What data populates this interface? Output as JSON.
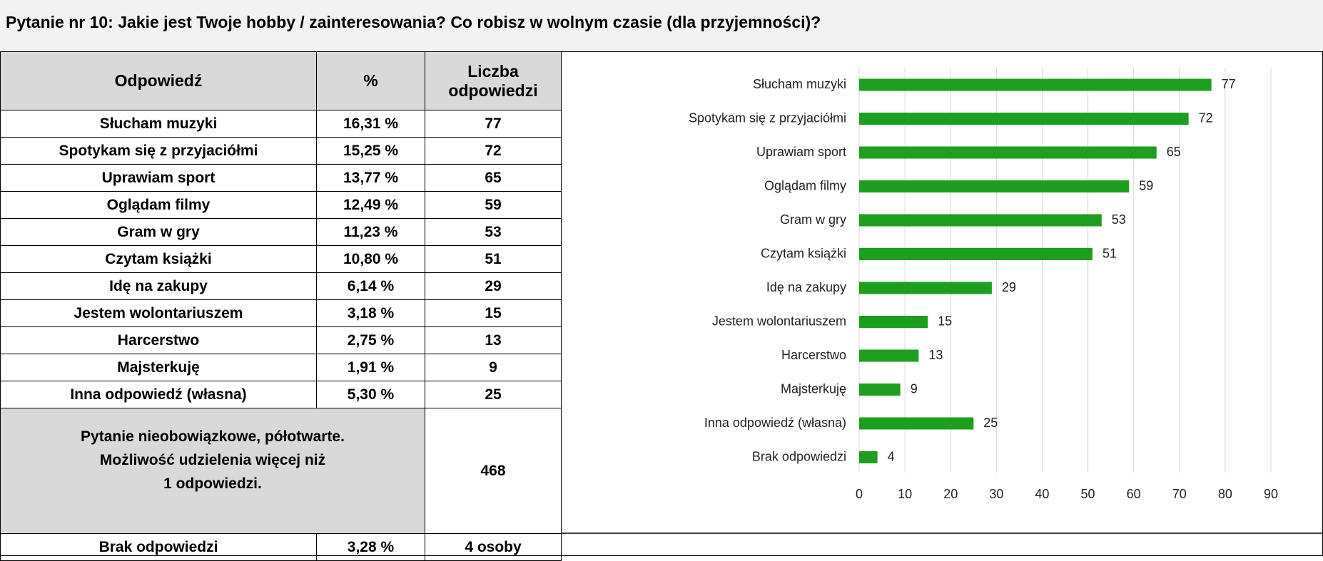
{
  "title": "Pytanie nr 10: Jakie jest Twoje hobby / zainteresowania? Co robisz w wolnym czasie (dla przyjemności)?",
  "table": {
    "headers": [
      "Odpowiedź",
      "%",
      "Liczba odpowiedzi"
    ],
    "rows": [
      [
        "Słucham muzyki",
        "16,31 %",
        "77"
      ],
      [
        "Spotykam się z przyjaciółmi",
        "15,25 %",
        "72"
      ],
      [
        "Uprawiam sport",
        "13,77 %",
        "65"
      ],
      [
        "Oglądam filmy",
        "12,49 %",
        "59"
      ],
      [
        "Gram w gry",
        "11,23 %",
        "53"
      ],
      [
        "Czytam książki",
        "10,80 %",
        "51"
      ],
      [
        "Idę na zakupy",
        "6,14 %",
        "29"
      ],
      [
        "Jestem wolontariuszem",
        "3,18 %",
        "15"
      ],
      [
        "Harcerstwo",
        "2,75 %",
        "13"
      ],
      [
        "Majsterkuję",
        "1,91 %",
        "9"
      ],
      [
        "Inna odpowiedź (własna)",
        "5,30 %",
        "25"
      ]
    ],
    "note": [
      "Pytanie nieobowiązkowe, półotwarte.",
      "Możliwość udzielenia więcej niż",
      "1 odpowiedzi."
    ],
    "note_total": "468",
    "last_row": [
      "Brak odpowiedzi",
      "3,28 %",
      "4 osoby"
    ]
  },
  "chart_data": {
    "type": "bar",
    "orientation": "horizontal",
    "categories": [
      "Słucham muzyki",
      "Spotykam się z przyjaciółmi",
      "Uprawiam sport",
      "Oglądam filmy",
      "Gram w gry",
      "Czytam książki",
      "Idę na zakupy",
      "Jestem wolontariuszem",
      "Harcerstwo",
      "Majsterkuję",
      "Inna odpowiedź (własna)",
      "Brak odpowiedzi"
    ],
    "values": [
      77,
      72,
      65,
      59,
      53,
      51,
      29,
      15,
      13,
      9,
      25,
      4
    ],
    "color": "#1e9e1e",
    "xlim": [
      0,
      90
    ],
    "xticks": [
      0,
      10,
      20,
      30,
      40,
      50,
      60,
      70,
      80,
      90
    ],
    "grid": true
  }
}
